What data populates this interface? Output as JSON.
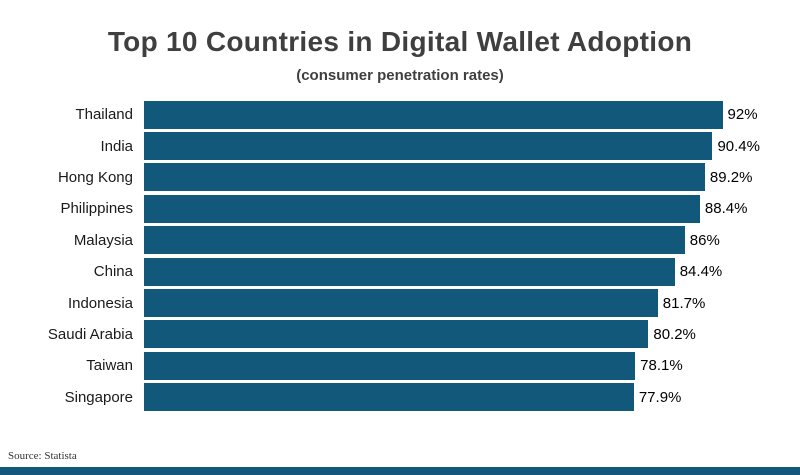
{
  "header": {
    "title": "Top 10 Countries in Digital Wallet Adoption",
    "subtitle": "(consumer penetration rates)"
  },
  "chart_data": {
    "type": "bar",
    "orientation": "horizontal",
    "title": "Top 10 Countries in Digital Wallet Adoption",
    "subtitle": "(consumer penetration rates)",
    "categories": [
      "Thailand",
      "India",
      "Hong Kong",
      "Philippines",
      "Malaysia",
      "China",
      "Indonesia",
      "Saudi Arabia",
      "Taiwan",
      "Singapore"
    ],
    "values": [
      92,
      90.4,
      89.2,
      88.4,
      86,
      84.4,
      81.7,
      80.2,
      78.1,
      77.9
    ],
    "value_labels": [
      "92%",
      "90.4%",
      "89.2%",
      "88.4%",
      "86%",
      "84.4%",
      "81.7%",
      "80.2%",
      "78.1%",
      "77.9%"
    ],
    "xlabel": "",
    "ylabel": "",
    "xlim": [
      0,
      100
    ],
    "grid": false,
    "legend": false,
    "bar_color": "#12587a"
  },
  "footer": {
    "source": "Source: Statista"
  }
}
